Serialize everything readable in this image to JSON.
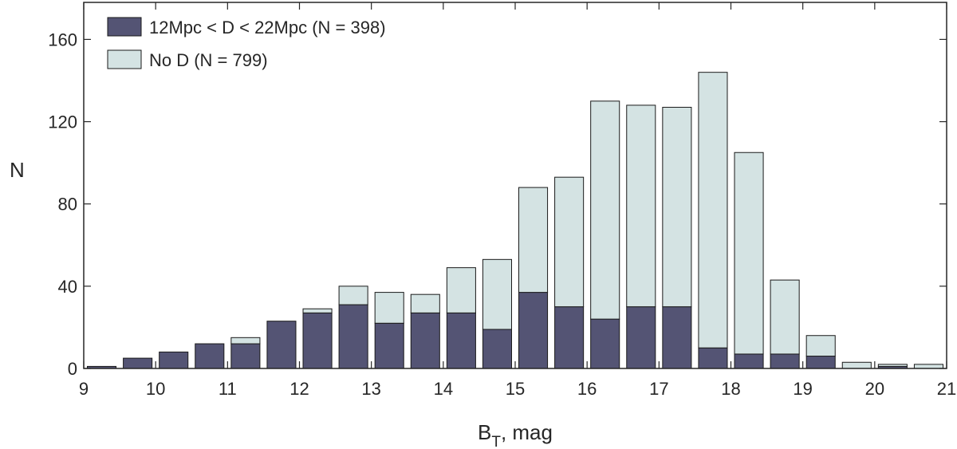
{
  "chart_data": {
    "type": "bar",
    "stacked": true,
    "x": [
      9.25,
      9.75,
      10.25,
      10.75,
      11.25,
      11.75,
      12.25,
      12.75,
      13.25,
      13.75,
      14.25,
      14.75,
      15.25,
      15.75,
      16.25,
      16.75,
      17.25,
      17.75,
      18.25,
      18.75,
      19.25,
      19.75,
      20.25,
      20.75
    ],
    "series": [
      {
        "name": "12Mpc < D < 22Mpc (N = 398)",
        "color": "#545474",
        "values": [
          1,
          5,
          8,
          12,
          12,
          23,
          27,
          31,
          22,
          27,
          27,
          19,
          37,
          30,
          24,
          30,
          30,
          10,
          7,
          7,
          6,
          0,
          1,
          0
        ]
      },
      {
        "name": "No D (N = 799)",
        "color": "#d4e3e3",
        "values": [
          0,
          0,
          0,
          0,
          3,
          0,
          2,
          9,
          15,
          9,
          22,
          34,
          51,
          63,
          106,
          98,
          97,
          134,
          98,
          36,
          10,
          3,
          1,
          2
        ]
      }
    ],
    "xlabel": "B",
    "xlabel_sub": "T",
    "xlabel_suffix": ", mag",
    "ylabel": "N",
    "xlim": [
      9,
      21
    ],
    "ylim": [
      0,
      178
    ],
    "xticks": [
      9,
      10,
      11,
      12,
      13,
      14,
      15,
      16,
      17,
      18,
      19,
      20,
      21
    ],
    "yticks": [
      0,
      40,
      80,
      120,
      160
    ],
    "grid": false,
    "legend_position": "top-left"
  }
}
